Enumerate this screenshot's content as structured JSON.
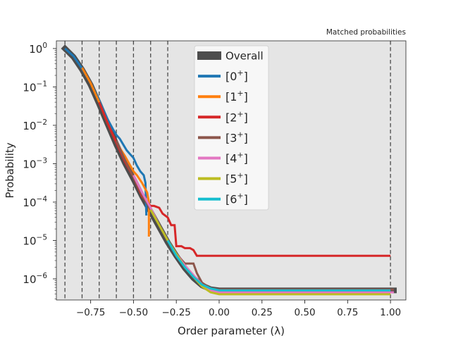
{
  "chart_data": {
    "type": "line",
    "title": "Matched probabilities",
    "xlabel": "Order parameter (λ)",
    "ylabel": "Probability",
    "xlim": [
      -0.95,
      1.09
    ],
    "ylim_log10": [
      -6.55,
      0.2
    ],
    "log_y": true,
    "grid": false,
    "legend_position": "top-center",
    "x_ticks": [
      {
        "value": -0.75,
        "label": "−0.75"
      },
      {
        "value": -0.5,
        "label": "−0.50"
      },
      {
        "value": -0.25,
        "label": "−0.25"
      },
      {
        "value": 0.0,
        "label": "0.00"
      },
      {
        "value": 0.25,
        "label": "0.25"
      },
      {
        "value": 0.5,
        "label": "0.50"
      },
      {
        "value": 0.75,
        "label": "0.75"
      },
      {
        "value": 1.0,
        "label": "1.00"
      }
    ],
    "y_ticks": [
      {
        "exp": 0,
        "label": "10",
        "sup": "0"
      },
      {
        "exp": -1,
        "label": "10",
        "sup": "−1"
      },
      {
        "exp": -2,
        "label": "10",
        "sup": "−2"
      },
      {
        "exp": -3,
        "label": "10",
        "sup": "−3"
      },
      {
        "exp": -4,
        "label": "10",
        "sup": "−4"
      },
      {
        "exp": -5,
        "label": "10",
        "sup": "−5"
      },
      {
        "exp": -6,
        "label": "10",
        "sup": "−6"
      }
    ],
    "interfaces": [
      -0.9,
      -0.8,
      -0.7,
      -0.6,
      -0.5,
      -0.4,
      -0.3,
      1.0
    ],
    "series": [
      {
        "name": "Overall",
        "color": "#4d4d4d",
        "x": [
          -0.9,
          -0.85,
          -0.8,
          -0.75,
          -0.7,
          -0.65,
          -0.6,
          -0.55,
          -0.5,
          -0.45,
          -0.4,
          -0.35,
          -0.3,
          -0.25,
          -0.2,
          -0.15,
          -0.1,
          -0.05,
          0.0,
          0.05,
          0.1,
          0.5,
          1.02
        ],
        "log10y": [
          0.0,
          -0.22,
          -0.55,
          -0.95,
          -1.45,
          -1.98,
          -2.5,
          -2.98,
          -3.4,
          -3.85,
          -4.25,
          -4.65,
          -5.05,
          -5.4,
          -5.72,
          -5.98,
          -6.17,
          -6.27,
          -6.3,
          -6.3,
          -6.3,
          -6.3,
          -6.3
        ]
      },
      {
        "name": "[0⁺]",
        "sup": "+",
        "base": "[0",
        "color": "#1f77b4",
        "x": [
          -0.9,
          -0.85,
          -0.8,
          -0.75,
          -0.7,
          -0.65,
          -0.62,
          -0.6,
          -0.58,
          -0.56,
          -0.54,
          -0.52,
          -0.5,
          -0.48,
          -0.46,
          -0.44,
          -0.43,
          -0.425
        ],
        "log10y": [
          0.0,
          -0.2,
          -0.52,
          -0.9,
          -1.35,
          -1.85,
          -2.1,
          -2.25,
          -2.35,
          -2.5,
          -2.65,
          -2.75,
          -2.85,
          -3.05,
          -3.2,
          -3.3,
          -3.5,
          -4.35
        ]
      },
      {
        "name": "[1⁺]",
        "base": "[1",
        "color": "#ff7f0e",
        "x": [
          -0.8,
          -0.75,
          -0.7,
          -0.65,
          -0.6,
          -0.55,
          -0.5,
          -0.48,
          -0.45,
          -0.42,
          -0.41,
          -0.41
        ],
        "log10y": [
          -0.5,
          -0.9,
          -1.4,
          -1.95,
          -2.45,
          -2.8,
          -3.2,
          -3.3,
          -3.5,
          -3.75,
          -4.0,
          -4.9
        ]
      },
      {
        "name": "[2⁺]",
        "base": "[2",
        "color": "#d62728",
        "x": [
          -0.7,
          -0.65,
          -0.6,
          -0.55,
          -0.5,
          -0.45,
          -0.42,
          -0.4,
          -0.38,
          -0.35,
          -0.33,
          -0.3,
          -0.28,
          -0.26,
          -0.25,
          -0.22,
          -0.2,
          -0.17,
          -0.15,
          -0.13,
          -0.1,
          -0.05,
          0.0,
          0.5,
          1.0
        ],
        "log10y": [
          -1.4,
          -1.95,
          -2.45,
          -2.95,
          -3.35,
          -3.85,
          -4.0,
          -4.1,
          -4.1,
          -4.15,
          -4.3,
          -4.4,
          -4.6,
          -4.6,
          -5.15,
          -5.15,
          -5.2,
          -5.2,
          -5.25,
          -5.4,
          -5.4,
          -5.4,
          -5.4,
          -5.4,
          -5.4
        ]
      },
      {
        "name": "[3⁺]",
        "base": "[3",
        "color": "#8c564b",
        "x": [
          -0.6,
          -0.55,
          -0.5,
          -0.45,
          -0.4,
          -0.35,
          -0.3,
          -0.25,
          -0.2,
          -0.15,
          -0.13,
          -0.1,
          -0.05,
          0.0,
          0.5,
          1.02
        ],
        "log10y": [
          -2.4,
          -2.9,
          -3.35,
          -3.8,
          -4.2,
          -4.6,
          -5.0,
          -5.35,
          -5.6,
          -5.6,
          -5.85,
          -6.1,
          -6.25,
          -6.28,
          -6.28,
          -6.28
        ]
      },
      {
        "name": "[4⁺]",
        "base": "[4",
        "color": "#e377c2",
        "x": [
          -0.5,
          -0.45,
          -0.4,
          -0.35,
          -0.3,
          -0.25,
          -0.2,
          -0.15,
          -0.1,
          -0.05,
          0.0,
          0.5,
          1.02
        ],
        "log10y": [
          -3.3,
          -3.75,
          -4.15,
          -4.6,
          -5.0,
          -5.35,
          -5.65,
          -5.9,
          -6.15,
          -6.3,
          -6.35,
          -6.35,
          -6.35
        ]
      },
      {
        "name": "[5⁺]",
        "base": "[5",
        "color": "#bcbd22",
        "x": [
          -0.4,
          -0.35,
          -0.3,
          -0.25,
          -0.2,
          -0.15,
          -0.1,
          -0.05,
          0.0,
          0.5,
          1.0
        ],
        "log10y": [
          -4.2,
          -4.6,
          -5.0,
          -5.35,
          -5.7,
          -5.95,
          -6.2,
          -6.35,
          -6.4,
          -6.4,
          -6.4
        ]
      },
      {
        "name": "[6⁺]",
        "base": "[6",
        "color": "#17becf",
        "x": [
          -0.3,
          -0.25,
          -0.2,
          -0.15,
          -0.1,
          -0.05,
          0.0,
          0.5,
          1.0
        ],
        "log10y": [
          -5.0,
          -5.4,
          -5.7,
          -5.95,
          -6.15,
          -6.25,
          -6.3,
          -6.3,
          -6.3
        ]
      }
    ]
  }
}
